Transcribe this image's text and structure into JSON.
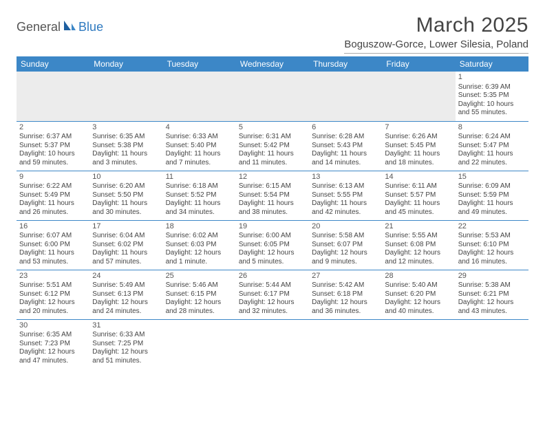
{
  "logo": {
    "part1": "General",
    "part2": "Blue"
  },
  "title": "March 2025",
  "location": "Boguszow-Gorce, Lower Silesia, Poland",
  "colors": {
    "header_bg": "#3c87c7",
    "header_text": "#ffffff",
    "border": "#3c87c7",
    "text": "#444444",
    "logo_accent": "#2f7ac0",
    "empty_bg": "#ececec"
  },
  "weekdays": [
    "Sunday",
    "Monday",
    "Tuesday",
    "Wednesday",
    "Thursday",
    "Friday",
    "Saturday"
  ],
  "weeks": [
    [
      null,
      null,
      null,
      null,
      null,
      null,
      {
        "n": "1",
        "sr": "Sunrise: 6:39 AM",
        "ss": "Sunset: 5:35 PM",
        "dl1": "Daylight: 10 hours",
        "dl2": "and 55 minutes."
      }
    ],
    [
      {
        "n": "2",
        "sr": "Sunrise: 6:37 AM",
        "ss": "Sunset: 5:37 PM",
        "dl1": "Daylight: 10 hours",
        "dl2": "and 59 minutes."
      },
      {
        "n": "3",
        "sr": "Sunrise: 6:35 AM",
        "ss": "Sunset: 5:38 PM",
        "dl1": "Daylight: 11 hours",
        "dl2": "and 3 minutes."
      },
      {
        "n": "4",
        "sr": "Sunrise: 6:33 AM",
        "ss": "Sunset: 5:40 PM",
        "dl1": "Daylight: 11 hours",
        "dl2": "and 7 minutes."
      },
      {
        "n": "5",
        "sr": "Sunrise: 6:31 AM",
        "ss": "Sunset: 5:42 PM",
        "dl1": "Daylight: 11 hours",
        "dl2": "and 11 minutes."
      },
      {
        "n": "6",
        "sr": "Sunrise: 6:28 AM",
        "ss": "Sunset: 5:43 PM",
        "dl1": "Daylight: 11 hours",
        "dl2": "and 14 minutes."
      },
      {
        "n": "7",
        "sr": "Sunrise: 6:26 AM",
        "ss": "Sunset: 5:45 PM",
        "dl1": "Daylight: 11 hours",
        "dl2": "and 18 minutes."
      },
      {
        "n": "8",
        "sr": "Sunrise: 6:24 AM",
        "ss": "Sunset: 5:47 PM",
        "dl1": "Daylight: 11 hours",
        "dl2": "and 22 minutes."
      }
    ],
    [
      {
        "n": "9",
        "sr": "Sunrise: 6:22 AM",
        "ss": "Sunset: 5:49 PM",
        "dl1": "Daylight: 11 hours",
        "dl2": "and 26 minutes."
      },
      {
        "n": "10",
        "sr": "Sunrise: 6:20 AM",
        "ss": "Sunset: 5:50 PM",
        "dl1": "Daylight: 11 hours",
        "dl2": "and 30 minutes."
      },
      {
        "n": "11",
        "sr": "Sunrise: 6:18 AM",
        "ss": "Sunset: 5:52 PM",
        "dl1": "Daylight: 11 hours",
        "dl2": "and 34 minutes."
      },
      {
        "n": "12",
        "sr": "Sunrise: 6:15 AM",
        "ss": "Sunset: 5:54 PM",
        "dl1": "Daylight: 11 hours",
        "dl2": "and 38 minutes."
      },
      {
        "n": "13",
        "sr": "Sunrise: 6:13 AM",
        "ss": "Sunset: 5:55 PM",
        "dl1": "Daylight: 11 hours",
        "dl2": "and 42 minutes."
      },
      {
        "n": "14",
        "sr": "Sunrise: 6:11 AM",
        "ss": "Sunset: 5:57 PM",
        "dl1": "Daylight: 11 hours",
        "dl2": "and 45 minutes."
      },
      {
        "n": "15",
        "sr": "Sunrise: 6:09 AM",
        "ss": "Sunset: 5:59 PM",
        "dl1": "Daylight: 11 hours",
        "dl2": "and 49 minutes."
      }
    ],
    [
      {
        "n": "16",
        "sr": "Sunrise: 6:07 AM",
        "ss": "Sunset: 6:00 PM",
        "dl1": "Daylight: 11 hours",
        "dl2": "and 53 minutes."
      },
      {
        "n": "17",
        "sr": "Sunrise: 6:04 AM",
        "ss": "Sunset: 6:02 PM",
        "dl1": "Daylight: 11 hours",
        "dl2": "and 57 minutes."
      },
      {
        "n": "18",
        "sr": "Sunrise: 6:02 AM",
        "ss": "Sunset: 6:03 PM",
        "dl1": "Daylight: 12 hours",
        "dl2": "and 1 minute."
      },
      {
        "n": "19",
        "sr": "Sunrise: 6:00 AM",
        "ss": "Sunset: 6:05 PM",
        "dl1": "Daylight: 12 hours",
        "dl2": "and 5 minutes."
      },
      {
        "n": "20",
        "sr": "Sunrise: 5:58 AM",
        "ss": "Sunset: 6:07 PM",
        "dl1": "Daylight: 12 hours",
        "dl2": "and 9 minutes."
      },
      {
        "n": "21",
        "sr": "Sunrise: 5:55 AM",
        "ss": "Sunset: 6:08 PM",
        "dl1": "Daylight: 12 hours",
        "dl2": "and 12 minutes."
      },
      {
        "n": "22",
        "sr": "Sunrise: 5:53 AM",
        "ss": "Sunset: 6:10 PM",
        "dl1": "Daylight: 12 hours",
        "dl2": "and 16 minutes."
      }
    ],
    [
      {
        "n": "23",
        "sr": "Sunrise: 5:51 AM",
        "ss": "Sunset: 6:12 PM",
        "dl1": "Daylight: 12 hours",
        "dl2": "and 20 minutes."
      },
      {
        "n": "24",
        "sr": "Sunrise: 5:49 AM",
        "ss": "Sunset: 6:13 PM",
        "dl1": "Daylight: 12 hours",
        "dl2": "and 24 minutes."
      },
      {
        "n": "25",
        "sr": "Sunrise: 5:46 AM",
        "ss": "Sunset: 6:15 PM",
        "dl1": "Daylight: 12 hours",
        "dl2": "and 28 minutes."
      },
      {
        "n": "26",
        "sr": "Sunrise: 5:44 AM",
        "ss": "Sunset: 6:17 PM",
        "dl1": "Daylight: 12 hours",
        "dl2": "and 32 minutes."
      },
      {
        "n": "27",
        "sr": "Sunrise: 5:42 AM",
        "ss": "Sunset: 6:18 PM",
        "dl1": "Daylight: 12 hours",
        "dl2": "and 36 minutes."
      },
      {
        "n": "28",
        "sr": "Sunrise: 5:40 AM",
        "ss": "Sunset: 6:20 PM",
        "dl1": "Daylight: 12 hours",
        "dl2": "and 40 minutes."
      },
      {
        "n": "29",
        "sr": "Sunrise: 5:38 AM",
        "ss": "Sunset: 6:21 PM",
        "dl1": "Daylight: 12 hours",
        "dl2": "and 43 minutes."
      }
    ],
    [
      {
        "n": "30",
        "sr": "Sunrise: 6:35 AM",
        "ss": "Sunset: 7:23 PM",
        "dl1": "Daylight: 12 hours",
        "dl2": "and 47 minutes."
      },
      {
        "n": "31",
        "sr": "Sunrise: 6:33 AM",
        "ss": "Sunset: 7:25 PM",
        "dl1": "Daylight: 12 hours",
        "dl2": "and 51 minutes."
      },
      null,
      null,
      null,
      null,
      null
    ]
  ]
}
